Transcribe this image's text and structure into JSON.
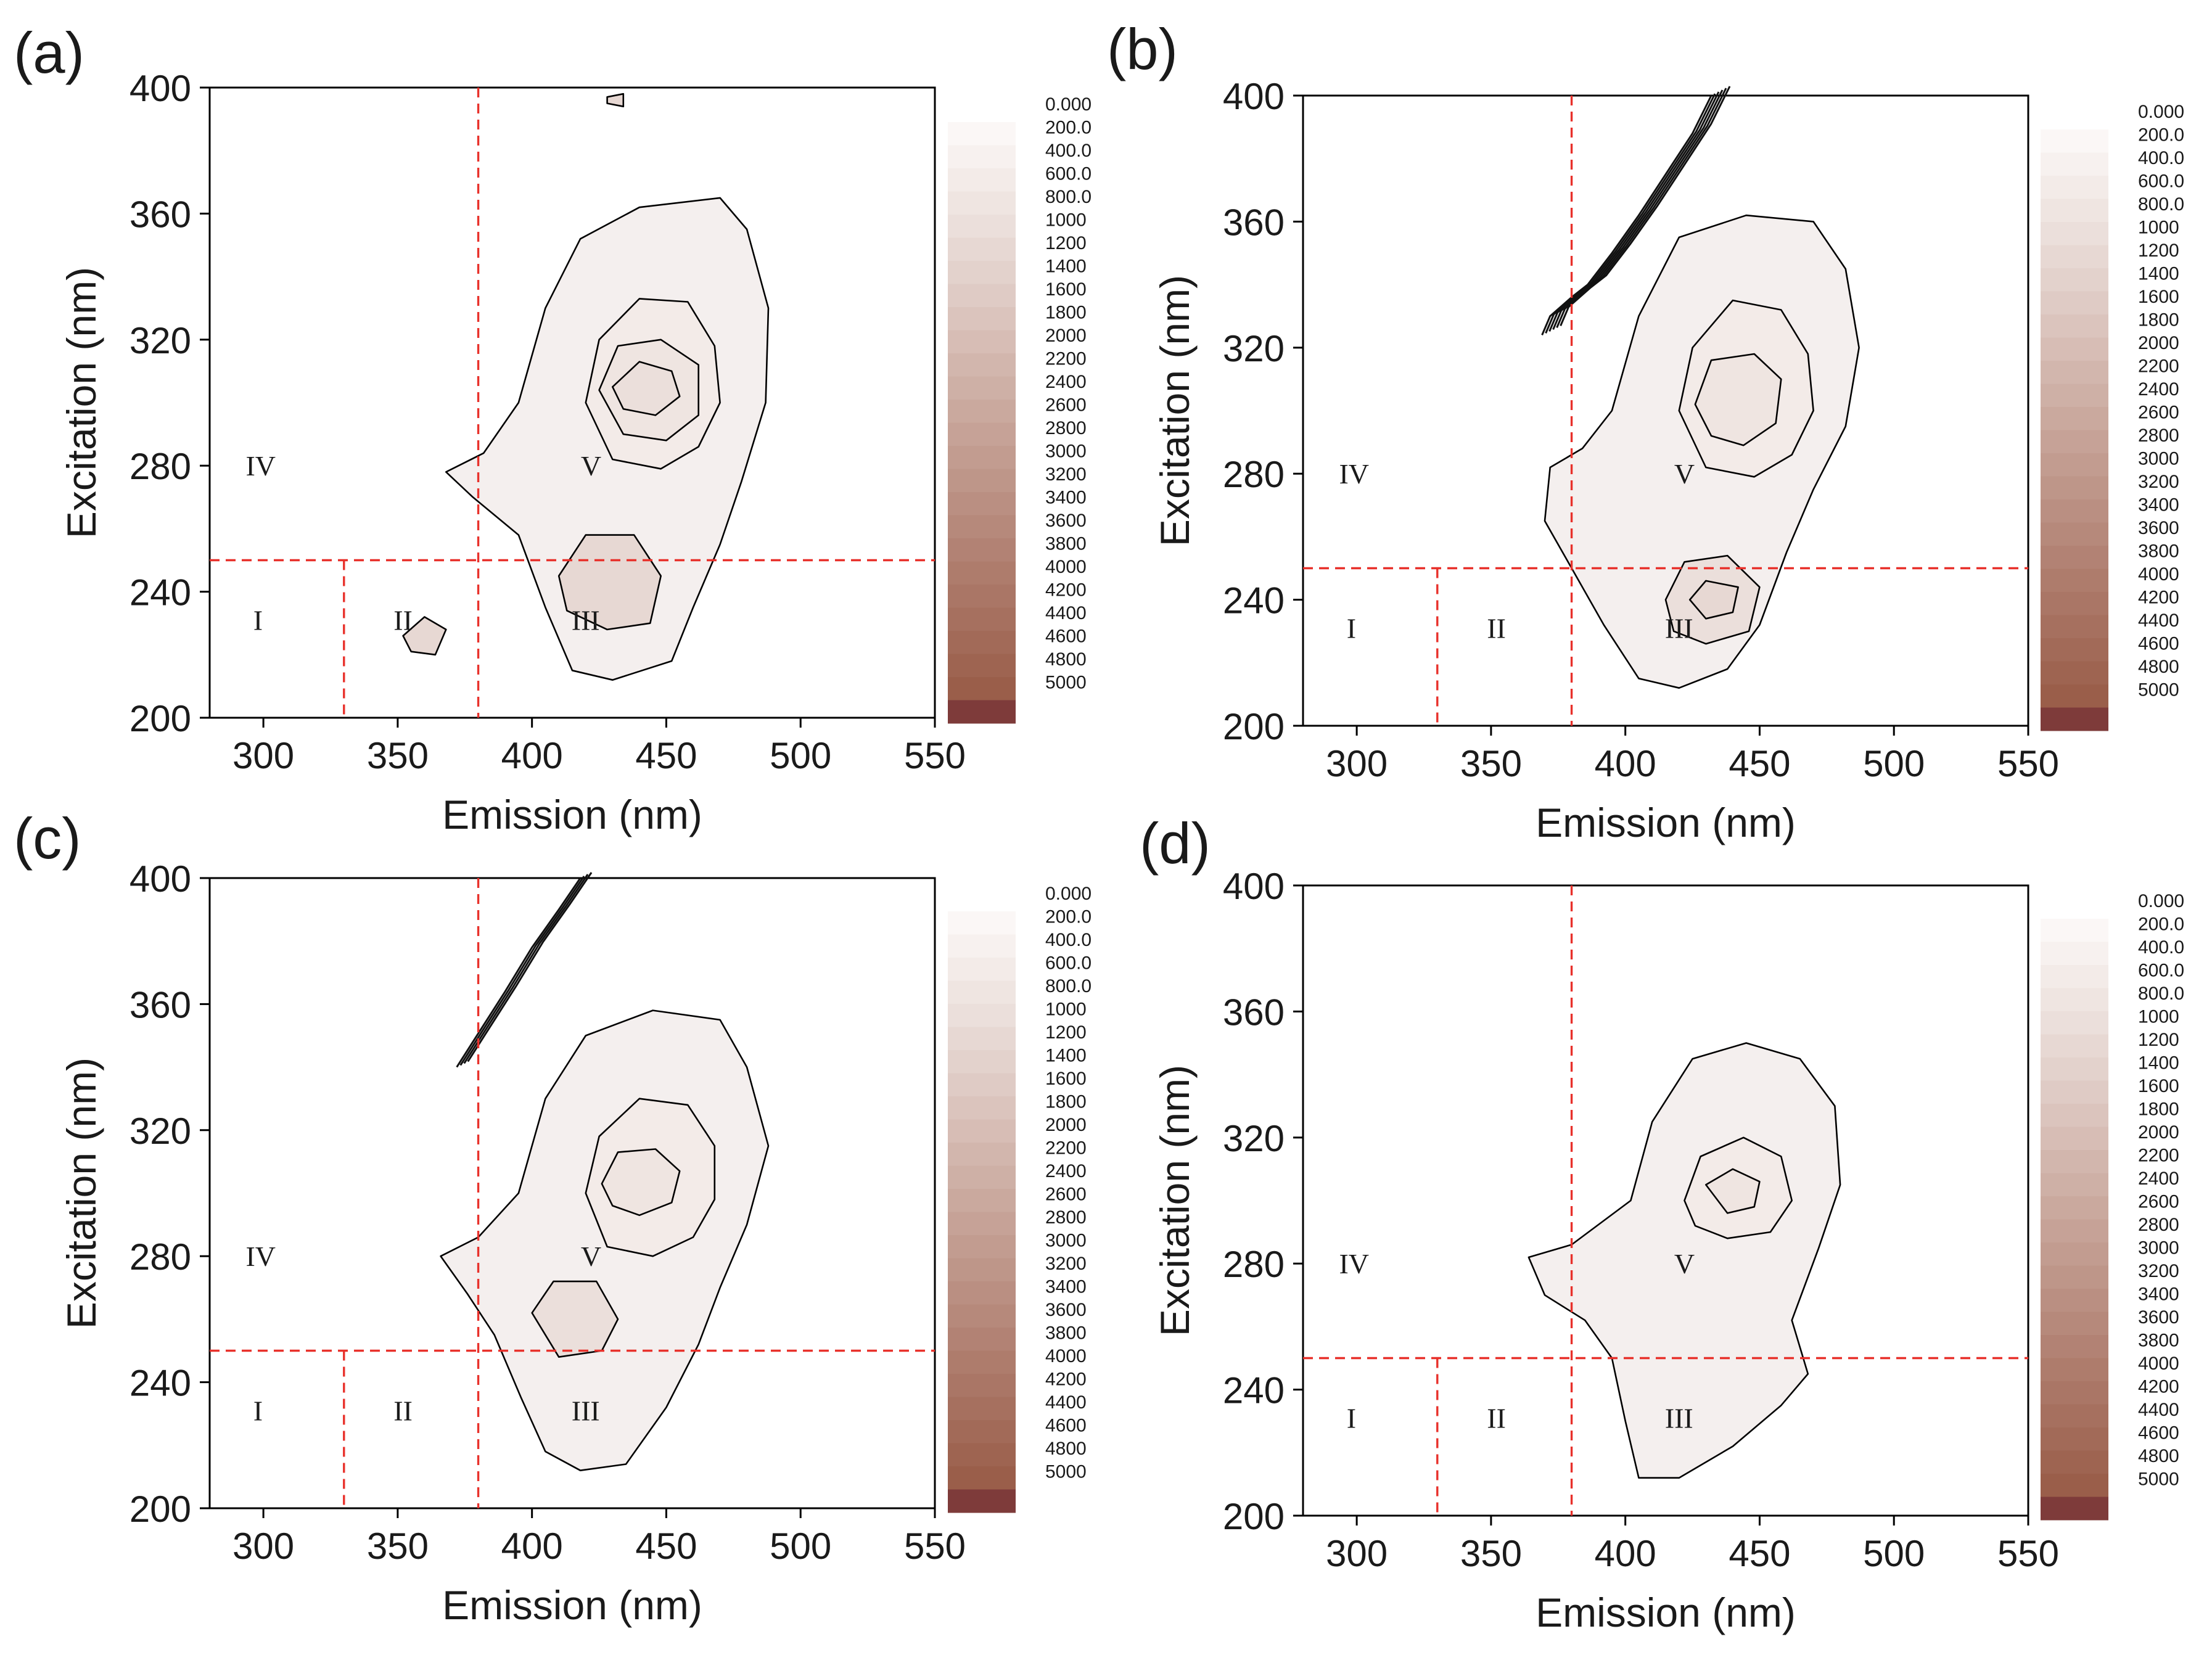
{
  "chart_data": [
    {
      "panel": "(a)",
      "type": "contour",
      "xlabel": "Emission (nm)",
      "ylabel": "Excitation (nm)",
      "xlim": [
        280,
        550
      ],
      "ylim": [
        200,
        400
      ],
      "xticks": [
        "300",
        "350",
        "400",
        "450",
        "500",
        "550"
      ],
      "yticks": [
        "200",
        "240",
        "280",
        "320",
        "360",
        "400"
      ],
      "region_labels": [
        {
          "label": "I",
          "em": 298,
          "ex": 231
        },
        {
          "label": "II",
          "em": 352,
          "ex": 231
        },
        {
          "label": "III",
          "em": 420,
          "ex": 231
        },
        {
          "label": "IV",
          "em": 299,
          "ex": 280
        },
        {
          "label": "V",
          "em": 422,
          "ex": 280
        }
      ],
      "peaks": [
        {
          "em": 439,
          "ex": 304,
          "level": 2000
        },
        {
          "em": 430,
          "ex": 243,
          "level": 800
        }
      ],
      "scatter_band": false
    },
    {
      "panel": "(b)",
      "type": "contour",
      "xlabel": "Emission (nm)",
      "ylabel": "Excitation (nm)",
      "xlim": [
        280,
        550
      ],
      "ylim": [
        200,
        400
      ],
      "xticks": [
        "300",
        "350",
        "400",
        "450",
        "500",
        "550"
      ],
      "yticks": [
        "200",
        "240",
        "280",
        "320",
        "360",
        "400"
      ],
      "region_labels": [
        {
          "label": "I",
          "em": 298,
          "ex": 231
        },
        {
          "label": "II",
          "em": 352,
          "ex": 231
        },
        {
          "label": "III",
          "em": 420,
          "ex": 231
        },
        {
          "label": "IV",
          "em": 299,
          "ex": 280
        },
        {
          "label": "V",
          "em": 422,
          "ex": 280
        }
      ],
      "peaks": [
        {
          "em": 437,
          "ex": 304,
          "level": 1800
        },
        {
          "em": 433,
          "ex": 241,
          "level": 1000
        }
      ],
      "scatter_band": true
    },
    {
      "panel": "(c)",
      "type": "contour",
      "xlabel": "Emission (nm)",
      "ylabel": "Excitation (nm)",
      "xlim": [
        280,
        550
      ],
      "ylim": [
        200,
        400
      ],
      "xticks": [
        "300",
        "350",
        "400",
        "450",
        "500",
        "550"
      ],
      "yticks": [
        "200",
        "240",
        "280",
        "320",
        "360",
        "400"
      ],
      "region_labels": [
        {
          "label": "I",
          "em": 298,
          "ex": 231
        },
        {
          "label": "II",
          "em": 352,
          "ex": 231
        },
        {
          "label": "III",
          "em": 420,
          "ex": 231
        },
        {
          "label": "IV",
          "em": 299,
          "ex": 280
        },
        {
          "label": "V",
          "em": 422,
          "ex": 280
        }
      ],
      "peaks": [
        {
          "em": 436,
          "ex": 304,
          "level": 1800
        },
        {
          "em": 420,
          "ex": 262,
          "level": 800
        }
      ],
      "scatter_band": true
    },
    {
      "panel": "(d)",
      "type": "contour",
      "xlabel": "Emission (nm)",
      "ylabel": "Excitation (nm)",
      "xlim": [
        280,
        550
      ],
      "ylim": [
        200,
        400
      ],
      "xticks": [
        "300",
        "350",
        "400",
        "450",
        "500",
        "550"
      ],
      "yticks": [
        "200",
        "240",
        "280",
        "320",
        "360",
        "400"
      ],
      "region_labels": [
        {
          "label": "I",
          "em": 298,
          "ex": 231
        },
        {
          "label": "II",
          "em": 352,
          "ex": 231
        },
        {
          "label": "III",
          "em": 420,
          "ex": 231
        },
        {
          "label": "IV",
          "em": 299,
          "ex": 280
        },
        {
          "label": "V",
          "em": 422,
          "ex": 280
        }
      ],
      "peaks": [
        {
          "em": 437,
          "ex": 304,
          "level": 1200
        }
      ],
      "scatter_band": false
    }
  ],
  "guides": {
    "vertical_em": [
      330,
      380
    ],
    "horizontal_ex": 250
  },
  "colorbar": {
    "levels": [
      "0.000",
      "200.0",
      "400.0",
      "600.0",
      "800.0",
      "1000",
      "1200",
      "1400",
      "1600",
      "1800",
      "2000",
      "2200",
      "2400",
      "2600",
      "2800",
      "3000",
      "3200",
      "3400",
      "3600",
      "3800",
      "4000",
      "4200",
      "4400",
      "4600",
      "4800",
      "5000"
    ],
    "colors": [
      "#fbf7f6",
      "#f7f1ef",
      "#f3ebe8",
      "#efe5e1",
      "#ebdfdb",
      "#e7d8d3",
      "#e3d2cc",
      "#dfcbc5",
      "#dbc4bd",
      "#d7bdb5",
      "#d2b6ad",
      "#ceb0a6",
      "#caa99e",
      "#c6a297",
      "#c29c90",
      "#be9689",
      "#ba8f82",
      "#b6897b",
      "#b28274",
      "#ae7c6c",
      "#aa7666",
      "#a6705f",
      "#a26a58",
      "#9e6451",
      "#9a5e4a",
      "#7e3b3a"
    ],
    "fill_color": "#f4efee",
    "guide_color": "#e8312b"
  }
}
